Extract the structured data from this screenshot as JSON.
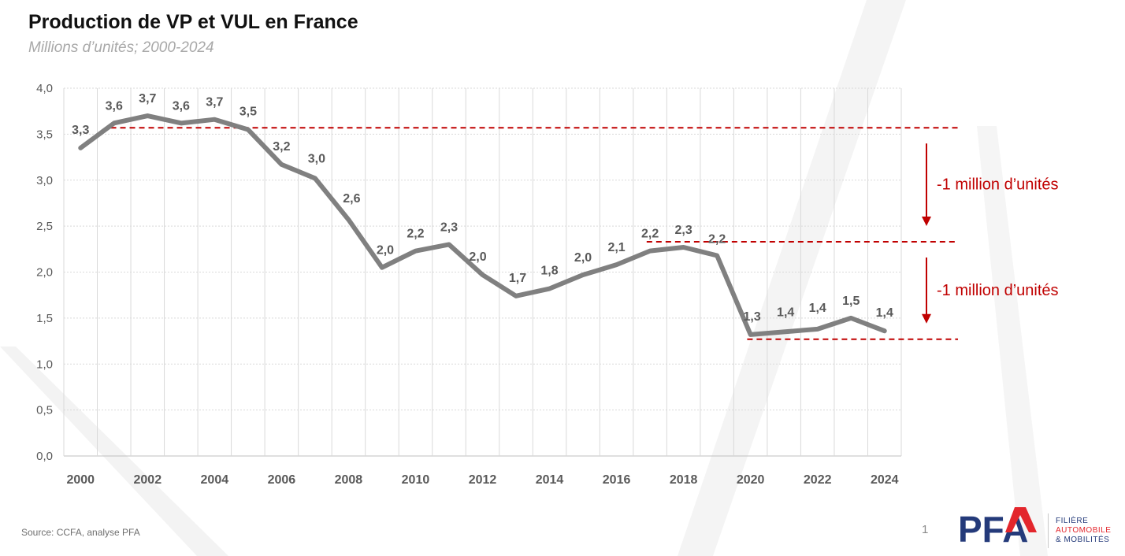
{
  "title": "Production de VP et VUL en France",
  "subtitle": "Millions d’unités; 2000-2024",
  "source": "Source: CCFA, analyse PFA",
  "page_number": "1",
  "logo": {
    "mark": "PFA",
    "line1": "FILIÈRE",
    "line2": "AUTOMOBILE",
    "line3": "& MOBILITÉS",
    "colors": {
      "blue": "#243a7a",
      "red": "#e3262c"
    }
  },
  "annotations": [
    {
      "text": "-1 million d’unités",
      "from": 3.57,
      "to": 2.33
    },
    {
      "text": "-1 million d’unités",
      "from": 2.33,
      "to": 1.27
    }
  ],
  "reference_lines": [
    3.57,
    2.33,
    1.27
  ],
  "colors": {
    "line": "#808080",
    "annotation": "#c00000",
    "grid": "#d9d9d9"
  },
  "chart_data": {
    "type": "line",
    "title": "Production de VP et VUL en France",
    "subtitle": "Millions d’unités; 2000-2024",
    "x": [
      2000,
      2001,
      2002,
      2003,
      2004,
      2005,
      2006,
      2007,
      2008,
      2009,
      2010,
      2011,
      2012,
      2013,
      2014,
      2015,
      2016,
      2017,
      2018,
      2019,
      2020,
      2021,
      2022,
      2023,
      2024
    ],
    "x_tick_labels": [
      "2000",
      "2002",
      "2004",
      "2006",
      "2008",
      "2010",
      "2012",
      "2014",
      "2016",
      "2018",
      "2020",
      "2022",
      "2024"
    ],
    "series": [
      {
        "values": [
          3.35,
          3.62,
          3.7,
          3.62,
          3.66,
          3.55,
          3.17,
          3.02,
          2.57,
          2.05,
          2.23,
          2.3,
          1.97,
          1.74,
          1.82,
          1.97,
          2.08,
          2.23,
          2.27,
          2.18,
          1.32,
          1.35,
          1.38,
          1.5,
          1.36
        ],
        "labels": [
          "3,3",
          "3,6",
          "3,7",
          "3,6",
          "3,7",
          "3,5",
          "3,2",
          "3,0",
          "2,6",
          "2,0",
          "2,2",
          "2,3",
          "2,0",
          "1,7",
          "1,8",
          "2,0",
          "2,1",
          "2,2",
          "2,3",
          "2,2",
          "1,3",
          "1,4",
          "1,4",
          "1,5",
          "1,4"
        ]
      }
    ],
    "y_tick_labels": [
      "0,0",
      "0,5",
      "1,0",
      "1,5",
      "2,0",
      "2,5",
      "3,0",
      "3,5",
      "4,0"
    ],
    "ylim": [
      0,
      4.0
    ],
    "xlim": [
      2000,
      2024
    ],
    "grid": true
  }
}
